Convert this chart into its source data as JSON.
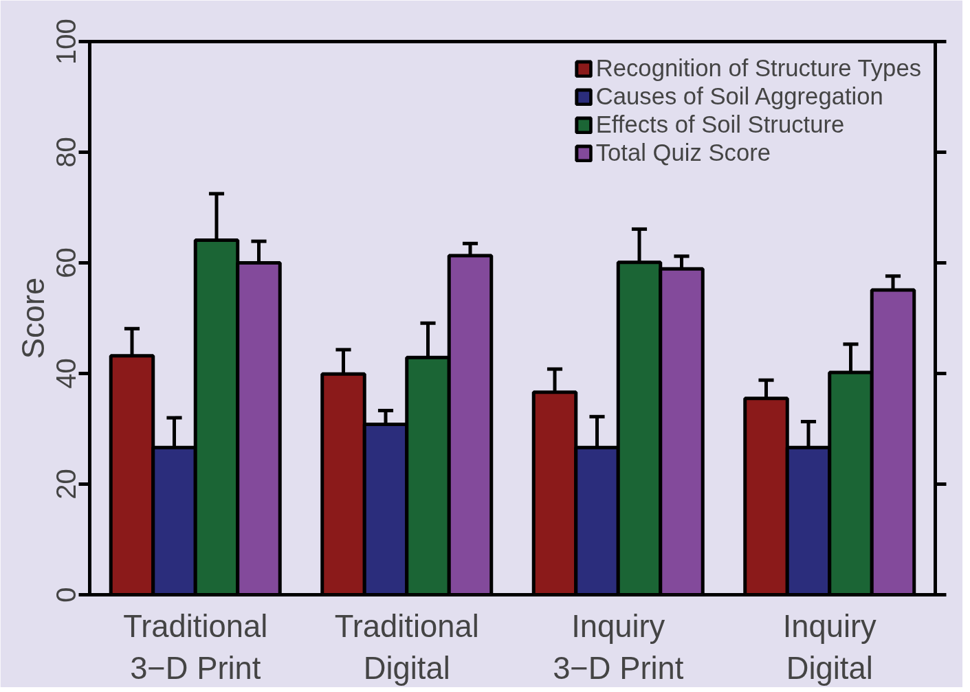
{
  "chart_data": {
    "type": "bar",
    "ylabel": "Score",
    "categories": [
      "Traditional\n3−D Print",
      "Traditional\nDigital",
      "Inquiry\n3−D Print",
      "Inquiry\nDigital"
    ],
    "series": [
      {
        "name": "Recognition of Structure Types",
        "color": "#8b1a1a",
        "values": [
          43.2,
          39.9,
          36.6,
          35.5
        ],
        "errors": [
          4.9,
          4.4,
          4.2,
          3.3
        ]
      },
      {
        "name": "Causes of Soil Aggregation",
        "color": "#2b2d7c",
        "values": [
          26.6,
          30.8,
          26.6,
          26.6
        ],
        "errors": [
          5.4,
          2.5,
          5.6,
          4.7
        ]
      },
      {
        "name": "Effects of Soil Structure",
        "color": "#1b6535",
        "values": [
          64.1,
          42.9,
          60.1,
          40.2
        ],
        "errors": [
          8.4,
          6.2,
          6.0,
          5.1
        ]
      },
      {
        "name": "Total Quiz Score",
        "color": "#834a9b",
        "values": [
          60.0,
          61.3,
          58.9,
          55.1
        ],
        "errors": [
          3.9,
          2.2,
          2.3,
          2.5
        ]
      }
    ],
    "ylim": [
      0,
      100
    ],
    "yticks": [
      0,
      20,
      40,
      60,
      80,
      100
    ],
    "grid": false,
    "legend": "top right"
  }
}
